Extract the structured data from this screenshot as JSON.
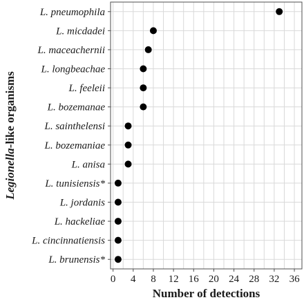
{
  "chart_data": {
    "type": "scatter",
    "orientation": "horizontal-dot-plot",
    "categories": [
      "L. pneumophila",
      "L. micdadei",
      "L. maceachernii",
      "L. longbeachae",
      "L. feeleii",
      "L. bozemanae",
      "L. sainthelensi",
      "L. bozemaniae",
      "L. anisa",
      "L. tunisiensis*",
      "L. jordanis",
      "L. hackeliae",
      "L. cincinnatiensis",
      "L. brunensis*"
    ],
    "values": [
      33,
      8,
      7,
      6,
      6,
      6,
      3,
      3,
      3,
      1,
      1,
      1,
      1,
      1
    ],
    "xlim": [
      -0.5,
      37.5
    ],
    "xticks": [
      0,
      4,
      8,
      12,
      16,
      20,
      24,
      28,
      32,
      36
    ],
    "xlabel": "Number of detections",
    "ylabel_emphasis": "Legionella",
    "ylabel_rest": "-like organisms",
    "grid": true,
    "point_color": "#000000"
  }
}
